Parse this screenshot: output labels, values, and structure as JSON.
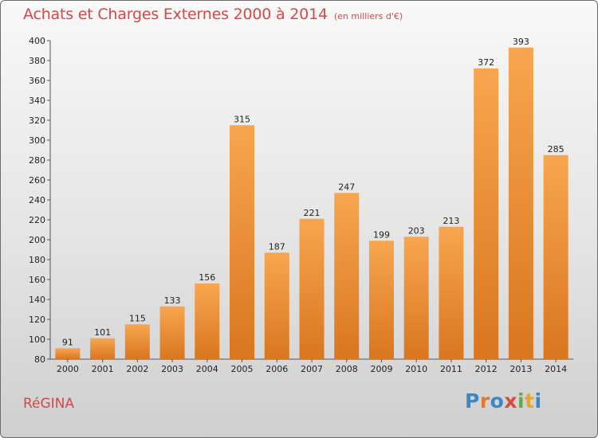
{
  "header": {
    "title": "Achats et Charges Externes 2000 à 2014",
    "subtitle": "(en milliers d'€)"
  },
  "footer": {
    "commune": "RéGINA",
    "brand": "Proxiti"
  },
  "brand_letters": [
    {
      "ch": "P",
      "color": "#3a86c8"
    },
    {
      "ch": "r",
      "color": "#e8772e"
    },
    {
      "ch": "o",
      "color": "#3a86c8"
    },
    {
      "ch": "x",
      "color": "#d84a3a"
    },
    {
      "ch": "i",
      "color": "#6aa843"
    },
    {
      "ch": "t",
      "color": "#e8a52e"
    },
    {
      "ch": "i",
      "color": "#3a86c8"
    }
  ],
  "colors": {
    "bar_top": "#f7a64f",
    "bar_bottom": "#d9761f",
    "text": "#222222",
    "title": "#d14a48"
  },
  "chart_data": {
    "type": "bar",
    "title": "Achats et Charges Externes 2000 à 2014",
    "subtitle": "(en milliers d'€)",
    "categories": [
      "2000",
      "2001",
      "2002",
      "2003",
      "2004",
      "2005",
      "2006",
      "2007",
      "2008",
      "2009",
      "2010",
      "2011",
      "2012",
      "2013",
      "2014"
    ],
    "values": [
      91,
      101,
      115,
      133,
      156,
      315,
      187,
      221,
      247,
      199,
      203,
      213,
      372,
      393,
      285
    ],
    "ylim": [
      80,
      400
    ],
    "yticks": [
      80,
      100,
      120,
      140,
      160,
      180,
      200,
      220,
      240,
      260,
      280,
      300,
      320,
      340,
      360,
      380,
      400
    ],
    "grid": false,
    "xlabel": "",
    "ylabel": ""
  }
}
